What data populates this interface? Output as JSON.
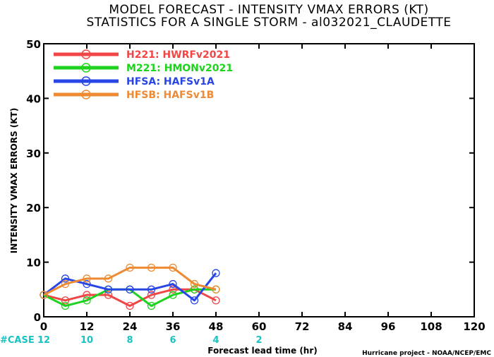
{
  "title_line1": "MODEL FORECAST - INTENSITY VMAX ERRORS (KT)",
  "title_line2": "STATISTICS FOR A SINGLE STORM - al032021_CLAUDETTE",
  "credit": "Hurricane project - NOAA/NCEP/EMC",
  "case_label": "#CASE",
  "chart_data": {
    "type": "line",
    "xlabel": "Forecast lead time (hr)",
    "ylabel": "INTENSITY VMAX ERRORS (KT)",
    "xlim": [
      0,
      120
    ],
    "ylim": [
      0,
      50
    ],
    "x_ticks": [
      0,
      12,
      24,
      36,
      48,
      60,
      72,
      84,
      96,
      108,
      120
    ],
    "y_ticks": [
      0,
      10,
      20,
      30,
      40,
      50
    ],
    "legend_position": "top-left",
    "case_counts": [
      {
        "x": 0,
        "n": "12"
      },
      {
        "x": 12,
        "n": "10"
      },
      {
        "x": 24,
        "n": "8"
      },
      {
        "x": 36,
        "n": "6"
      },
      {
        "x": 48,
        "n": "4"
      },
      {
        "x": 60,
        "n": "2"
      }
    ],
    "series": [
      {
        "name": "H221: HWRFv2021",
        "color": "#f04646",
        "x": [
          0,
          6,
          12,
          18,
          24,
          30,
          36,
          42,
          48
        ],
        "y": [
          4,
          3,
          4,
          4,
          2,
          4,
          5,
          5,
          3
        ]
      },
      {
        "name": "M221: HMONv2021",
        "color": "#1ed21e",
        "x": [
          0,
          6,
          12,
          18,
          24,
          30,
          36,
          42,
          48
        ],
        "y": [
          4,
          2,
          3,
          5,
          5,
          2,
          4,
          5,
          5
        ]
      },
      {
        "name": "HFSA: HAFSv1A",
        "color": "#2846e6",
        "x": [
          0,
          6,
          12,
          18,
          24,
          30,
          36,
          42,
          48
        ],
        "y": [
          4,
          7,
          6,
          5,
          5,
          5,
          6,
          3,
          8
        ]
      },
      {
        "name": "HFSB: HAFSv1B",
        "color": "#ee8a32",
        "x": [
          0,
          6,
          12,
          18,
          24,
          30,
          36,
          42,
          48
        ],
        "y": [
          4,
          6,
          7,
          7,
          9,
          9,
          9,
          6,
          5
        ]
      }
    ]
  }
}
